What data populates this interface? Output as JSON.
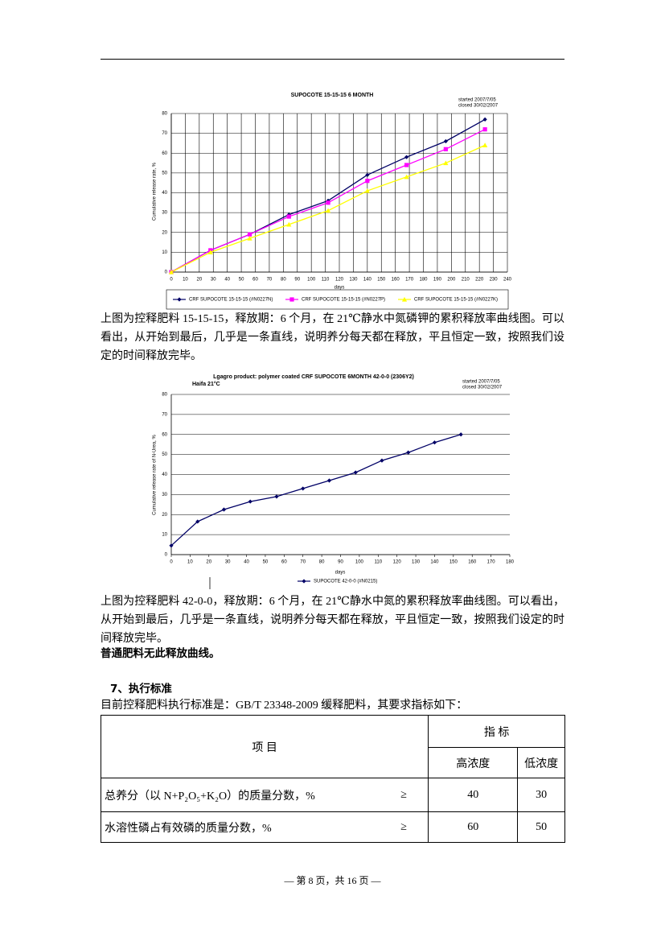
{
  "chart_data": [
    {
      "type": "line",
      "title": "SUPOCOTE 15-15-15 6 MONTH",
      "annotations": [
        "started 2007/7/05",
        "closed 30/02/2007"
      ],
      "xlabel": "days",
      "ylabel": "Cumulative release rate, %",
      "x": [
        0,
        28,
        56,
        84,
        112,
        140,
        168,
        196,
        224
      ],
      "series": [
        {
          "name": "CRF SUPOCOTE 15-15-15 (#N0227N)",
          "color": "#000066",
          "marker": "diamond",
          "values": [
            0,
            11,
            19,
            29,
            36,
            49,
            58,
            66,
            77
          ]
        },
        {
          "name": "CRF SUPOCOTE 15-15-15 (#N0227P)",
          "color": "#ff00ff",
          "marker": "square",
          "values": [
            0,
            11,
            19,
            28,
            35,
            46,
            54,
            62,
            72
          ]
        },
        {
          "name": "CRF SUPOCOTE 15-15-15 (#N0227K)",
          "color": "#ffff00",
          "marker": "triangle",
          "values": [
            0,
            10,
            17,
            24,
            31,
            41,
            48,
            55,
            64
          ]
        }
      ],
      "xlim": [
        0,
        240
      ],
      "xticks": [
        0,
        10,
        20,
        30,
        40,
        50,
        60,
        70,
        80,
        90,
        100,
        110,
        120,
        130,
        140,
        150,
        160,
        170,
        180,
        190,
        200,
        210,
        220,
        230,
        240
      ],
      "ylim": [
        0,
        80
      ],
      "yticks": [
        0,
        10,
        20,
        30,
        40,
        50,
        60,
        70,
        80
      ],
      "grid": "both"
    },
    {
      "type": "line",
      "title": "Lgagro product: polymer coated CRF SUPOCOTE 6MONTH 42-0-0 (2306Y2)",
      "subtitle": "Haifa 21°C",
      "annotations": [
        "started 2007/7/05",
        "closed 30/02/2007"
      ],
      "xlabel": "days",
      "ylabel": "Cumulative release rate of N-Urea, %",
      "x": [
        0,
        14,
        28,
        42,
        56,
        70,
        84,
        98,
        112,
        126,
        140,
        154
      ],
      "series": [
        {
          "name": "SUPOCOTE 42-0-0 (#N0215)",
          "color": "#000066",
          "marker": "diamond",
          "values": [
            4.5,
            16.5,
            22.5,
            26.5,
            29,
            33,
            37,
            41,
            47,
            51,
            56,
            60
          ]
        }
      ],
      "xlim": [
        0,
        180
      ],
      "xticks": [
        0,
        10,
        20,
        30,
        40,
        50,
        60,
        70,
        80,
        90,
        100,
        110,
        120,
        130,
        140,
        150,
        160,
        170,
        180
      ],
      "ylim": [
        0,
        80
      ],
      "yticks": [
        0,
        10,
        20,
        30,
        40,
        50,
        60,
        70,
        80
      ],
      "grid": "y"
    }
  ],
  "document": {
    "caption_1": "上图为控释肥料 15-15-15，释放期：6 个月，在 21℃静水中氮磷钾的累积释放率曲线图。可以看出，从开始到最后，几乎是一条直线，说明养分每天都在释放，平且恒定一致，按照我们设定的时间释放完毕。",
    "caption_2": "上图为控释肥料 42-0-0，释放期：6 个月，在 21℃静水中氮的累积释放率曲线图。可以看出，从开始到最后，几乎是一条直线，说明养分每天都在释放，平且恒定一致，按照我们设定的时间释放完毕。",
    "note": "普通肥料无此释放曲线。",
    "heading": "7、执行标准",
    "intro": "目前控释肥料执行标准是：GB/T 23348-2009 缓释肥料，其要求指标如下：",
    "table": {
      "header": {
        "item": "项 目",
        "index": "指 标",
        "high": "高浓度",
        "low": "低浓度"
      },
      "rows": [
        [
          "总养分（以 N+P₂O₅+K₂O）的质量分数，%",
          "≥",
          "40",
          "30"
        ],
        [
          "水溶性磷占有效磷的质量分数，%",
          "≥",
          "60",
          "50"
        ]
      ]
    },
    "footer": "— 第 8 页，共 16 页 —"
  }
}
